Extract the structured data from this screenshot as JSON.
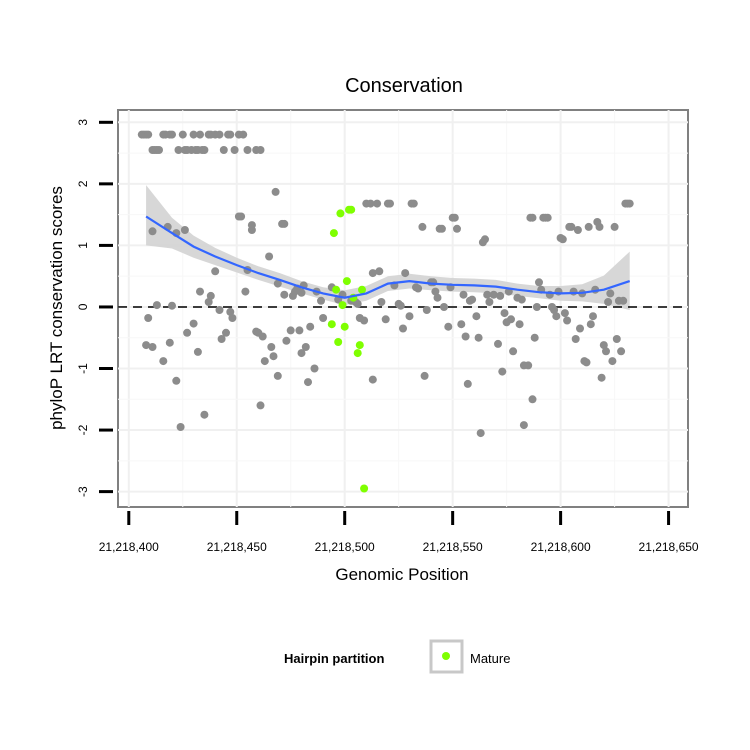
{
  "chart_data": {
    "type": "scatter",
    "title": "Conservation",
    "xlabel": "Genomic Position",
    "ylabel": "phyloP LRT conservation scores",
    "x_tick_values": [
      21218400,
      21218450,
      21218500,
      21218550,
      21218600,
      21218650
    ],
    "x_tick_labels": [
      "21,218,400",
      "21,218,450",
      "21,218,500",
      "21,218,550",
      "21,218,600",
      "21,218,650"
    ],
    "y_tick_values": [
      3,
      2,
      1,
      0,
      -1,
      -2,
      -3
    ],
    "y_tick_labels": [
      "3",
      "2",
      "1",
      "0",
      "-1",
      "-2",
      "-3"
    ],
    "xlim": [
      21218395,
      21218659
    ],
    "ylim": [
      -3.25,
      3.2
    ],
    "reference_line_y": 0,
    "grid": true,
    "legend": {
      "title": "Hairpin partition",
      "position": "bottom",
      "entries": [
        {
          "label": "Mature",
          "color": "#7fff00"
        }
      ]
    },
    "colors": {
      "other": "#8c8c8c",
      "mature": "#7fff00",
      "smooth": "#3366ff",
      "ribbon": "#d3d3d3"
    },
    "series": [
      {
        "group": "other",
        "points": [
          [
            21218406,
            2.8
          ],
          [
            21218407,
            2.8
          ],
          [
            21218408,
            2.8
          ],
          [
            21218409,
            2.8
          ],
          [
            21218411,
            2.55
          ],
          [
            21218412,
            2.55
          ],
          [
            21218413,
            2.55
          ],
          [
            21218414,
            2.55
          ],
          [
            21218416,
            2.8
          ],
          [
            21218417,
            2.8
          ],
          [
            21218419,
            2.8
          ],
          [
            21218420,
            2.8
          ],
          [
            21218423,
            2.55
          ],
          [
            21218425,
            2.8
          ],
          [
            21218426,
            2.55
          ],
          [
            21218427,
            2.55
          ],
          [
            21218429,
            2.55
          ],
          [
            21218430,
            2.8
          ],
          [
            21218431,
            2.55
          ],
          [
            21218432,
            2.55
          ],
          [
            21218433,
            2.8
          ],
          [
            21218434,
            2.55
          ],
          [
            21218435,
            2.55
          ],
          [
            21218437,
            2.8
          ],
          [
            21218438,
            2.8
          ],
          [
            21218440,
            2.8
          ],
          [
            21218442,
            2.8
          ],
          [
            21218444,
            2.55
          ],
          [
            21218446,
            2.8
          ],
          [
            21218447,
            2.8
          ],
          [
            21218449,
            2.55
          ],
          [
            21218451,
            2.8
          ],
          [
            21218453,
            2.8
          ],
          [
            21218455,
            2.55
          ],
          [
            21218459,
            2.55
          ],
          [
            21218461,
            2.55
          ],
          [
            21218408,
            -0.62
          ],
          [
            21218409,
            -0.18
          ],
          [
            21218411,
            -0.65
          ],
          [
            21218411,
            1.23
          ],
          [
            21218413,
            0.03
          ],
          [
            21218416,
            -0.88
          ],
          [
            21218418,
            1.3
          ],
          [
            21218419,
            -0.58
          ],
          [
            21218420,
            0.02
          ],
          [
            21218422,
            -1.2
          ],
          [
            21218422,
            1.2
          ],
          [
            21218424,
            -1.95
          ],
          [
            21218426,
            1.25
          ],
          [
            21218427,
            -0.42
          ],
          [
            21218430,
            -0.27
          ],
          [
            21218432,
            -0.73
          ],
          [
            21218433,
            0.25
          ],
          [
            21218435,
            -1.75
          ],
          [
            21218437,
            0.08
          ],
          [
            21218438,
            0.18
          ],
          [
            21218440,
            0.58
          ],
          [
            21218442,
            -0.05
          ],
          [
            21218443,
            -0.52
          ],
          [
            21218445,
            -0.42
          ],
          [
            21218447,
            -0.08
          ],
          [
            21218448,
            -0.18
          ],
          [
            21218451,
            1.47
          ],
          [
            21218452,
            1.47
          ],
          [
            21218454,
            0.25
          ],
          [
            21218455,
            0.6
          ],
          [
            21218457,
            1.33
          ],
          [
            21218457,
            1.25
          ],
          [
            21218459,
            -0.4
          ],
          [
            21218460,
            -0.42
          ],
          [
            21218461,
            -1.6
          ],
          [
            21218462,
            -0.48
          ],
          [
            21218463,
            -0.88
          ],
          [
            21218465,
            0.82
          ],
          [
            21218466,
            -0.65
          ],
          [
            21218467,
            -0.8
          ],
          [
            21218468,
            1.87
          ],
          [
            21218469,
            -1.12
          ],
          [
            21218469,
            0.38
          ],
          [
            21218471,
            1.35
          ],
          [
            21218472,
            1.35
          ],
          [
            21218472,
            0.2
          ],
          [
            21218473,
            -0.55
          ],
          [
            21218475,
            -0.38
          ],
          [
            21218476,
            0.18
          ],
          [
            21218477,
            0.25
          ],
          [
            21218478,
            0.3
          ],
          [
            21218479,
            -0.38
          ],
          [
            21218480,
            -0.75
          ],
          [
            21218480,
            0.23
          ],
          [
            21218481,
            0.35
          ],
          [
            21218482,
            -0.65
          ],
          [
            21218483,
            -1.22
          ],
          [
            21218484,
            -0.32
          ],
          [
            21218486,
            -1.0
          ],
          [
            21218487,
            0.25
          ],
          [
            21218489,
            0.1
          ],
          [
            21218490,
            -0.18
          ],
          [
            21218494,
            0.32
          ],
          [
            21218497,
            0.12
          ],
          [
            21218499,
            0.2
          ],
          [
            21218503,
            0.1
          ],
          [
            21218505,
            0.08
          ],
          [
            21218506,
            0.05
          ],
          [
            21218507,
            -0.18
          ],
          [
            21218509,
            -0.22
          ],
          [
            21218510,
            1.68
          ],
          [
            21218512,
            1.68
          ],
          [
            21218513,
            -1.18
          ],
          [
            21218513,
            0.55
          ],
          [
            21218515,
            1.68
          ],
          [
            21218516,
            0.58
          ],
          [
            21218517,
            0.08
          ],
          [
            21218519,
            -0.2
          ],
          [
            21218520,
            1.68
          ],
          [
            21218521,
            1.68
          ],
          [
            21218523,
            0.35
          ],
          [
            21218525,
            0.05
          ],
          [
            21218526,
            0.02
          ],
          [
            21218527,
            -0.35
          ],
          [
            21218528,
            0.55
          ],
          [
            21218530,
            -0.15
          ],
          [
            21218531,
            1.68
          ],
          [
            21218532,
            1.68
          ],
          [
            21218533,
            0.32
          ],
          [
            21218534,
            0.3
          ],
          [
            21218536,
            1.3
          ],
          [
            21218537,
            -1.12
          ],
          [
            21218538,
            -0.05
          ],
          [
            21218540,
            0.4
          ],
          [
            21218541,
            0.4
          ],
          [
            21218542,
            0.25
          ],
          [
            21218543,
            0.15
          ],
          [
            21218544,
            1.27
          ],
          [
            21218545,
            1.27
          ],
          [
            21218546,
            0.0
          ],
          [
            21218548,
            -0.32
          ],
          [
            21218549,
            0.32
          ],
          [
            21218550,
            1.45
          ],
          [
            21218551,
            1.45
          ],
          [
            21218552,
            1.27
          ],
          [
            21218554,
            -0.28
          ],
          [
            21218555,
            0.2
          ],
          [
            21218556,
            -0.48
          ],
          [
            21218557,
            -1.25
          ],
          [
            21218558,
            0.1
          ],
          [
            21218559,
            0.12
          ],
          [
            21218561,
            -0.15
          ],
          [
            21218562,
            -0.5
          ],
          [
            21218563,
            -2.05
          ],
          [
            21218564,
            1.05
          ],
          [
            21218565,
            1.1
          ],
          [
            21218566,
            0.2
          ],
          [
            21218567,
            0.08
          ],
          [
            21218569,
            0.2
          ],
          [
            21218571,
            -0.6
          ],
          [
            21218572,
            0.18
          ],
          [
            21218573,
            -1.05
          ],
          [
            21218574,
            -0.1
          ],
          [
            21218575,
            -0.25
          ],
          [
            21218576,
            0.25
          ],
          [
            21218577,
            -0.2
          ],
          [
            21218578,
            -0.72
          ],
          [
            21218580,
            0.15
          ],
          [
            21218581,
            -0.28
          ],
          [
            21218582,
            0.12
          ],
          [
            21218583,
            -0.95
          ],
          [
            21218583,
            -1.92
          ],
          [
            21218585,
            -0.95
          ],
          [
            21218586,
            1.45
          ],
          [
            21218587,
            1.45
          ],
          [
            21218587,
            -1.5
          ],
          [
            21218588,
            -0.5
          ],
          [
            21218589,
            0.0
          ],
          [
            21218590,
            0.4
          ],
          [
            21218591,
            0.28
          ],
          [
            21218592,
            1.45
          ],
          [
            21218593,
            1.45
          ],
          [
            21218594,
            1.45
          ],
          [
            21218595,
            0.2
          ],
          [
            21218596,
            0.0
          ],
          [
            21218597,
            -0.05
          ],
          [
            21218598,
            -0.15
          ],
          [
            21218599,
            0.25
          ],
          [
            21218600,
            1.12
          ],
          [
            21218601,
            1.1
          ],
          [
            21218602,
            -0.1
          ],
          [
            21218603,
            -0.22
          ],
          [
            21218604,
            1.3
          ],
          [
            21218605,
            1.3
          ],
          [
            21218606,
            0.25
          ],
          [
            21218607,
            -0.52
          ],
          [
            21218608,
            1.25
          ],
          [
            21218609,
            -0.35
          ],
          [
            21218610,
            0.22
          ],
          [
            21218611,
            -0.88
          ],
          [
            21218612,
            -0.9
          ],
          [
            21218613,
            1.3
          ],
          [
            21218614,
            -0.28
          ],
          [
            21218615,
            -0.15
          ],
          [
            21218616,
            0.28
          ],
          [
            21218617,
            1.38
          ],
          [
            21218618,
            1.3
          ],
          [
            21218619,
            -1.15
          ],
          [
            21218620,
            -0.62
          ],
          [
            21218621,
            -0.72
          ],
          [
            21218622,
            0.08
          ],
          [
            21218623,
            0.22
          ],
          [
            21218624,
            -0.88
          ],
          [
            21218625,
            1.3
          ],
          [
            21218626,
            -0.52
          ],
          [
            21218627,
            0.1
          ],
          [
            21218628,
            -0.72
          ],
          [
            21218629,
            0.1
          ],
          [
            21218630,
            1.68
          ],
          [
            21218631,
            1.68
          ],
          [
            21218632,
            1.68
          ]
        ]
      },
      {
        "group": "mature",
        "name": "Mature",
        "points": [
          [
            21218494,
            -0.28
          ],
          [
            21218495,
            1.2
          ],
          [
            21218496,
            0.28
          ],
          [
            21218497,
            -0.57
          ],
          [
            21218498,
            1.52
          ],
          [
            21218499,
            0.03
          ],
          [
            21218500,
            -0.32
          ],
          [
            21218501,
            0.42
          ],
          [
            21218502,
            1.58
          ],
          [
            21218503,
            1.58
          ],
          [
            21218504,
            0.15
          ],
          [
            21218506,
            -0.75
          ],
          [
            21218507,
            -0.62
          ],
          [
            21218508,
            0.28
          ],
          [
            21218509,
            -2.95
          ]
        ]
      }
    ],
    "smooth": {
      "x": [
        21218408,
        21218420,
        21218430,
        21218440,
        21218450,
        21218460,
        21218470,
        21218480,
        21218490,
        21218500,
        21218510,
        21218520,
        21218530,
        21218540,
        21218550,
        21218560,
        21218570,
        21218580,
        21218590,
        21218600,
        21218610,
        21218620,
        21218632
      ],
      "y": [
        1.47,
        1.2,
        0.98,
        0.82,
        0.68,
        0.55,
        0.44,
        0.32,
        0.22,
        0.15,
        0.22,
        0.38,
        0.42,
        0.38,
        0.36,
        0.35,
        0.33,
        0.28,
        0.24,
        0.22,
        0.23,
        0.28,
        0.42
      ],
      "lower": [
        1.0,
        0.95,
        0.8,
        0.68,
        0.56,
        0.44,
        0.33,
        0.22,
        0.12,
        0.03,
        0.1,
        0.26,
        0.3,
        0.27,
        0.25,
        0.24,
        0.22,
        0.18,
        0.14,
        0.1,
        0.09,
        0.05,
        -0.05
      ],
      "upper": [
        1.98,
        1.45,
        1.16,
        0.96,
        0.8,
        0.66,
        0.55,
        0.42,
        0.32,
        0.27,
        0.34,
        0.5,
        0.54,
        0.5,
        0.47,
        0.46,
        0.44,
        0.38,
        0.34,
        0.34,
        0.37,
        0.51,
        0.9
      ]
    }
  }
}
